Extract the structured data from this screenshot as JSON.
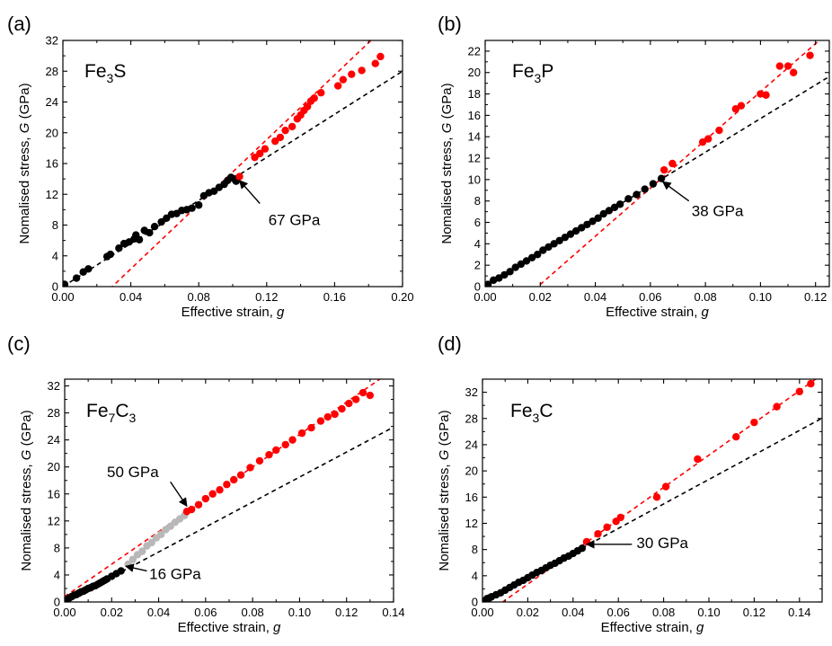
{
  "colors": {
    "low_pressure": "#000000",
    "high_pressure": "#ff0000",
    "transition": "#b8b8b8",
    "fit_low": "#000000",
    "fit_high": "#ff0000"
  },
  "chart_data": [
    {
      "type": "scatter",
      "panel": "(a)",
      "formula": {
        "base": "Fe",
        "sub1": "3",
        "mid": "S",
        "sub2": ""
      },
      "xlabel": "Effective strain, ",
      "xlabel_var": "g",
      "ylabel": "Nomalised stress, ",
      "ylabel_var": "G",
      "ylabel_unit": " (GPa)",
      "xlim": [
        0,
        0.2
      ],
      "ylim": [
        0,
        32
      ],
      "xticks": [
        0.0,
        0.04,
        0.08,
        0.12,
        0.16,
        0.2
      ],
      "xtick_decimals": 2,
      "yticks": [
        0,
        4,
        8,
        12,
        16,
        20,
        24,
        28,
        32
      ],
      "annotations": [
        {
          "text": "67 GPa",
          "x": 0.121,
          "y": 8.0,
          "arrow_from": [
            0.116,
            10.8
          ],
          "arrow_to": [
            0.104,
            13.8
          ]
        }
      ],
      "fits": [
        {
          "color": "fit_low",
          "slope": 140,
          "intercept": 0
        },
        {
          "color": "fit_high",
          "slope": 210,
          "intercept": -6.1
        }
      ],
      "series": [
        {
          "color": "low_pressure",
          "points": [
            [
              0.001,
              0.3
            ],
            [
              0.008,
              1.1
            ],
            [
              0.012,
              1.9
            ],
            [
              0.015,
              2.3
            ],
            [
              0.026,
              3.9
            ],
            [
              0.028,
              4.2
            ],
            [
              0.033,
              5.0
            ],
            [
              0.036,
              5.6
            ],
            [
              0.039,
              5.8
            ],
            [
              0.042,
              6.2
            ],
            [
              0.043,
              6.7
            ],
            [
              0.045,
              6.1
            ],
            [
              0.048,
              7.3
            ],
            [
              0.051,
              7.0
            ],
            [
              0.054,
              7.8
            ],
            [
              0.058,
              8.4
            ],
            [
              0.061,
              8.9
            ],
            [
              0.064,
              9.4
            ],
            [
              0.067,
              9.5
            ],
            [
              0.07,
              9.9
            ],
            [
              0.073,
              10.0
            ],
            [
              0.076,
              10.2
            ],
            [
              0.08,
              10.6
            ],
            [
              0.083,
              11.8
            ],
            [
              0.086,
              12.2
            ],
            [
              0.089,
              12.4
            ],
            [
              0.092,
              12.9
            ],
            [
              0.095,
              13.3
            ],
            [
              0.097,
              13.8
            ],
            [
              0.099,
              14.2
            ],
            [
              0.101,
              14.0
            ],
            [
              0.102,
              13.7
            ]
          ]
        },
        {
          "color": "high_pressure",
          "points": [
            [
              0.104,
              14.3
            ],
            [
              0.113,
              16.8
            ],
            [
              0.116,
              17.3
            ],
            [
              0.119,
              17.9
            ],
            [
              0.125,
              18.9
            ],
            [
              0.128,
              19.4
            ],
            [
              0.131,
              20.3
            ],
            [
              0.135,
              20.8
            ],
            [
              0.138,
              21.8
            ],
            [
              0.14,
              22.3
            ],
            [
              0.142,
              22.9
            ],
            [
              0.144,
              23.4
            ],
            [
              0.146,
              24.1
            ],
            [
              0.148,
              24.5
            ],
            [
              0.152,
              25.2
            ],
            [
              0.162,
              26.1
            ],
            [
              0.165,
              26.9
            ],
            [
              0.17,
              27.6
            ],
            [
              0.176,
              28.1
            ],
            [
              0.184,
              29.0
            ],
            [
              0.187,
              29.9
            ]
          ]
        }
      ]
    },
    {
      "type": "scatter",
      "panel": "(b)",
      "formula": {
        "base": "Fe",
        "sub1": "3",
        "mid": "P",
        "sub2": ""
      },
      "xlabel": "Effective strain, ",
      "xlabel_var": "g",
      "ylabel": "Nomalised stress, ",
      "ylabel_var": "G",
      "ylabel_unit": " (GPa)",
      "xlim": [
        0,
        0.125
      ],
      "ylim": [
        0,
        23
      ],
      "xticks": [
        0.0,
        0.02,
        0.04,
        0.06,
        0.08,
        0.1,
        0.12
      ],
      "xtick_decimals": 2,
      "yticks": [
        0,
        2,
        4,
        6,
        8,
        10,
        12,
        14,
        16,
        18,
        20,
        22
      ],
      "annotations": [
        {
          "text": "38 GPa",
          "x": 0.075,
          "y": 6.6,
          "arrow_from": [
            0.074,
            8.0
          ],
          "arrow_to": [
            0.0645,
            9.8
          ]
        }
      ],
      "fits": [
        {
          "color": "fit_low",
          "slope": 157,
          "intercept": 0
        },
        {
          "color": "fit_high",
          "slope": 225,
          "intercept": -4.3
        }
      ],
      "series": [
        {
          "color": "low_pressure",
          "points": [
            [
              0.001,
              0.2
            ],
            [
              0.003,
              0.6
            ],
            [
              0.005,
              0.8
            ],
            [
              0.007,
              1.1
            ],
            [
              0.009,
              1.4
            ],
            [
              0.011,
              1.8
            ],
            [
              0.013,
              2.1
            ],
            [
              0.015,
              2.4
            ],
            [
              0.017,
              2.7
            ],
            [
              0.019,
              3.0
            ],
            [
              0.021,
              3.4
            ],
            [
              0.023,
              3.7
            ],
            [
              0.025,
              4.0
            ],
            [
              0.027,
              4.3
            ],
            [
              0.029,
              4.6
            ],
            [
              0.031,
              4.9
            ],
            [
              0.033,
              5.2
            ],
            [
              0.035,
              5.5
            ],
            [
              0.037,
              5.8
            ],
            [
              0.039,
              6.1
            ],
            [
              0.041,
              6.4
            ],
            [
              0.043,
              6.8
            ],
            [
              0.045,
              7.1
            ],
            [
              0.047,
              7.4
            ],
            [
              0.049,
              7.7
            ],
            [
              0.052,
              8.2
            ],
            [
              0.055,
              8.6
            ],
            [
              0.058,
              9.1
            ],
            [
              0.061,
              9.6
            ],
            [
              0.064,
              10.1
            ]
          ]
        },
        {
          "color": "high_pressure",
          "points": [
            [
              0.065,
              10.9
            ],
            [
              0.068,
              11.5
            ],
            [
              0.079,
              13.5
            ],
            [
              0.081,
              13.8
            ],
            [
              0.085,
              14.6
            ],
            [
              0.091,
              16.6
            ],
            [
              0.093,
              16.9
            ],
            [
              0.1,
              18.0
            ],
            [
              0.102,
              17.9
            ],
            [
              0.107,
              20.6
            ],
            [
              0.11,
              20.6
            ],
            [
              0.112,
              20.0
            ],
            [
              0.118,
              21.6
            ]
          ]
        }
      ]
    },
    {
      "type": "scatter",
      "panel": "(c)",
      "formula": {
        "base": "Fe",
        "sub1": "7",
        "mid": "C",
        "sub2": "3"
      },
      "xlabel": "Effective strain, ",
      "xlabel_var": "g",
      "ylabel": "Nomalised stress, ",
      "ylabel_var": "G",
      "ylabel_unit": " (GPa)",
      "xlim": [
        0,
        0.14
      ],
      "ylim": [
        0,
        33
      ],
      "xticks": [
        0.0,
        0.02,
        0.04,
        0.06,
        0.08,
        0.1,
        0.12,
        0.14
      ],
      "xtick_decimals": 2,
      "yticks": [
        0,
        4,
        8,
        12,
        16,
        20,
        24,
        28,
        32
      ],
      "annotations": [
        {
          "text": "50 GPa",
          "x": 0.018,
          "y": 18.5,
          "arrow_from": [
            0.045,
            17.8
          ],
          "arrow_to": [
            0.052,
            14.2
          ]
        },
        {
          "text": "16 GPa",
          "x": 0.036,
          "y": 3.4,
          "arrow_from": [
            0.035,
            4.6
          ],
          "arrow_to": [
            0.026,
            5.3
          ]
        }
      ],
      "fits": [
        {
          "color": "fit_low",
          "slope": 185,
          "intercept": 0
        },
        {
          "color": "fit_high",
          "slope": 240,
          "intercept": 0.8
        }
      ],
      "series": [
        {
          "color": "low_pressure",
          "points": [
            [
              0.001,
              0.3
            ],
            [
              0.002,
              0.6
            ],
            [
              0.003,
              0.8
            ],
            [
              0.004,
              1.0
            ],
            [
              0.005,
              1.1
            ],
            [
              0.006,
              1.3
            ],
            [
              0.007,
              1.5
            ],
            [
              0.008,
              1.6
            ],
            [
              0.009,
              1.8
            ],
            [
              0.01,
              2.0
            ],
            [
              0.011,
              2.1
            ],
            [
              0.012,
              2.3
            ],
            [
              0.013,
              2.4
            ],
            [
              0.014,
              2.6
            ],
            [
              0.015,
              2.8
            ],
            [
              0.016,
              3.0
            ],
            [
              0.017,
              3.2
            ],
            [
              0.018,
              3.4
            ],
            [
              0.02,
              3.8
            ],
            [
              0.022,
              4.2
            ],
            [
              0.024,
              4.6
            ]
          ]
        },
        {
          "color": "transition",
          "points": [
            [
              0.027,
              5.6
            ],
            [
              0.029,
              6.3
            ],
            [
              0.031,
              7.0
            ],
            [
              0.033,
              7.5
            ],
            [
              0.035,
              8.3
            ],
            [
              0.037,
              8.8
            ],
            [
              0.039,
              9.5
            ],
            [
              0.041,
              10.0
            ],
            [
              0.043,
              10.7
            ],
            [
              0.045,
              11.2
            ],
            [
              0.047,
              11.8
            ],
            [
              0.049,
              12.3
            ],
            [
              0.051,
              12.8
            ]
          ]
        },
        {
          "color": "high_pressure",
          "points": [
            [
              0.052,
              13.4
            ],
            [
              0.054,
              13.7
            ],
            [
              0.057,
              14.4
            ],
            [
              0.06,
              15.3
            ],
            [
              0.063,
              16.0
            ],
            [
              0.066,
              16.6
            ],
            [
              0.069,
              17.4
            ],
            [
              0.072,
              18.1
            ],
            [
              0.075,
              18.8
            ],
            [
              0.079,
              19.9
            ],
            [
              0.083,
              20.9
            ],
            [
              0.087,
              21.8
            ],
            [
              0.09,
              22.5
            ],
            [
              0.094,
              23.3
            ],
            [
              0.097,
              24.0
            ],
            [
              0.101,
              25.0
            ],
            [
              0.105,
              25.8
            ],
            [
              0.109,
              26.8
            ],
            [
              0.112,
              27.4
            ],
            [
              0.115,
              27.8
            ],
            [
              0.118,
              28.6
            ],
            [
              0.121,
              29.4
            ],
            [
              0.124,
              30.0
            ],
            [
              0.127,
              31.0
            ],
            [
              0.13,
              30.6
            ]
          ]
        }
      ]
    },
    {
      "type": "scatter",
      "panel": "(d)",
      "formula": {
        "base": "Fe",
        "sub1": "3",
        "mid": "C",
        "sub2": ""
      },
      "xlabel": "Effective strain, ",
      "xlabel_var": "g",
      "ylabel": "Nomalised stress, ",
      "ylabel_var": "G",
      "ylabel_unit": " (GPa)",
      "xlim": [
        0,
        0.15
      ],
      "ylim": [
        0,
        34
      ],
      "xticks": [
        0.0,
        0.02,
        0.04,
        0.06,
        0.08,
        0.1,
        0.12,
        0.14
      ],
      "xtick_decimals": 2,
      "yticks": [
        0,
        4,
        8,
        12,
        16,
        20,
        24,
        28,
        32
      ],
      "annotations": [
        {
          "text": "30 GPa",
          "x": 0.068,
          "y": 8.2,
          "arrow_from": [
            0.066,
            8.8
          ],
          "arrow_to": [
            0.046,
            8.8
          ]
        }
      ],
      "fits": [
        {
          "color": "fit_low",
          "slope": 187,
          "intercept": 0
        },
        {
          "color": "fit_high",
          "slope": 246,
          "intercept": -2.2
        }
      ],
      "series": [
        {
          "color": "low_pressure",
          "points": [
            [
              0.001,
              0.2
            ],
            [
              0.002,
              0.5
            ],
            [
              0.003,
              0.6
            ],
            [
              0.004,
              0.8
            ],
            [
              0.006,
              1.1
            ],
            [
              0.008,
              1.4
            ],
            [
              0.01,
              1.8
            ],
            [
              0.012,
              2.2
            ],
            [
              0.014,
              2.6
            ],
            [
              0.016,
              3.0
            ],
            [
              0.018,
              3.3
            ],
            [
              0.02,
              3.7
            ],
            [
              0.022,
              4.1
            ],
            [
              0.024,
              4.5
            ],
            [
              0.026,
              4.8
            ],
            [
              0.028,
              5.2
            ],
            [
              0.03,
              5.6
            ],
            [
              0.032,
              5.9
            ],
            [
              0.034,
              6.3
            ],
            [
              0.036,
              6.7
            ],
            [
              0.038,
              7.0
            ],
            [
              0.04,
              7.4
            ],
            [
              0.042,
              7.8
            ],
            [
              0.044,
              8.2
            ]
          ]
        },
        {
          "color": "high_pressure",
          "points": [
            [
              0.046,
              9.2
            ],
            [
              0.051,
              10.4
            ],
            [
              0.055,
              11.4
            ],
            [
              0.059,
              12.3
            ],
            [
              0.061,
              12.9
            ],
            [
              0.077,
              16.0
            ],
            [
              0.081,
              17.6
            ],
            [
              0.095,
              21.8
            ],
            [
              0.112,
              25.2
            ],
            [
              0.12,
              27.4
            ],
            [
              0.13,
              29.8
            ],
            [
              0.14,
              32.1
            ],
            [
              0.145,
              33.3
            ]
          ]
        }
      ]
    }
  ]
}
